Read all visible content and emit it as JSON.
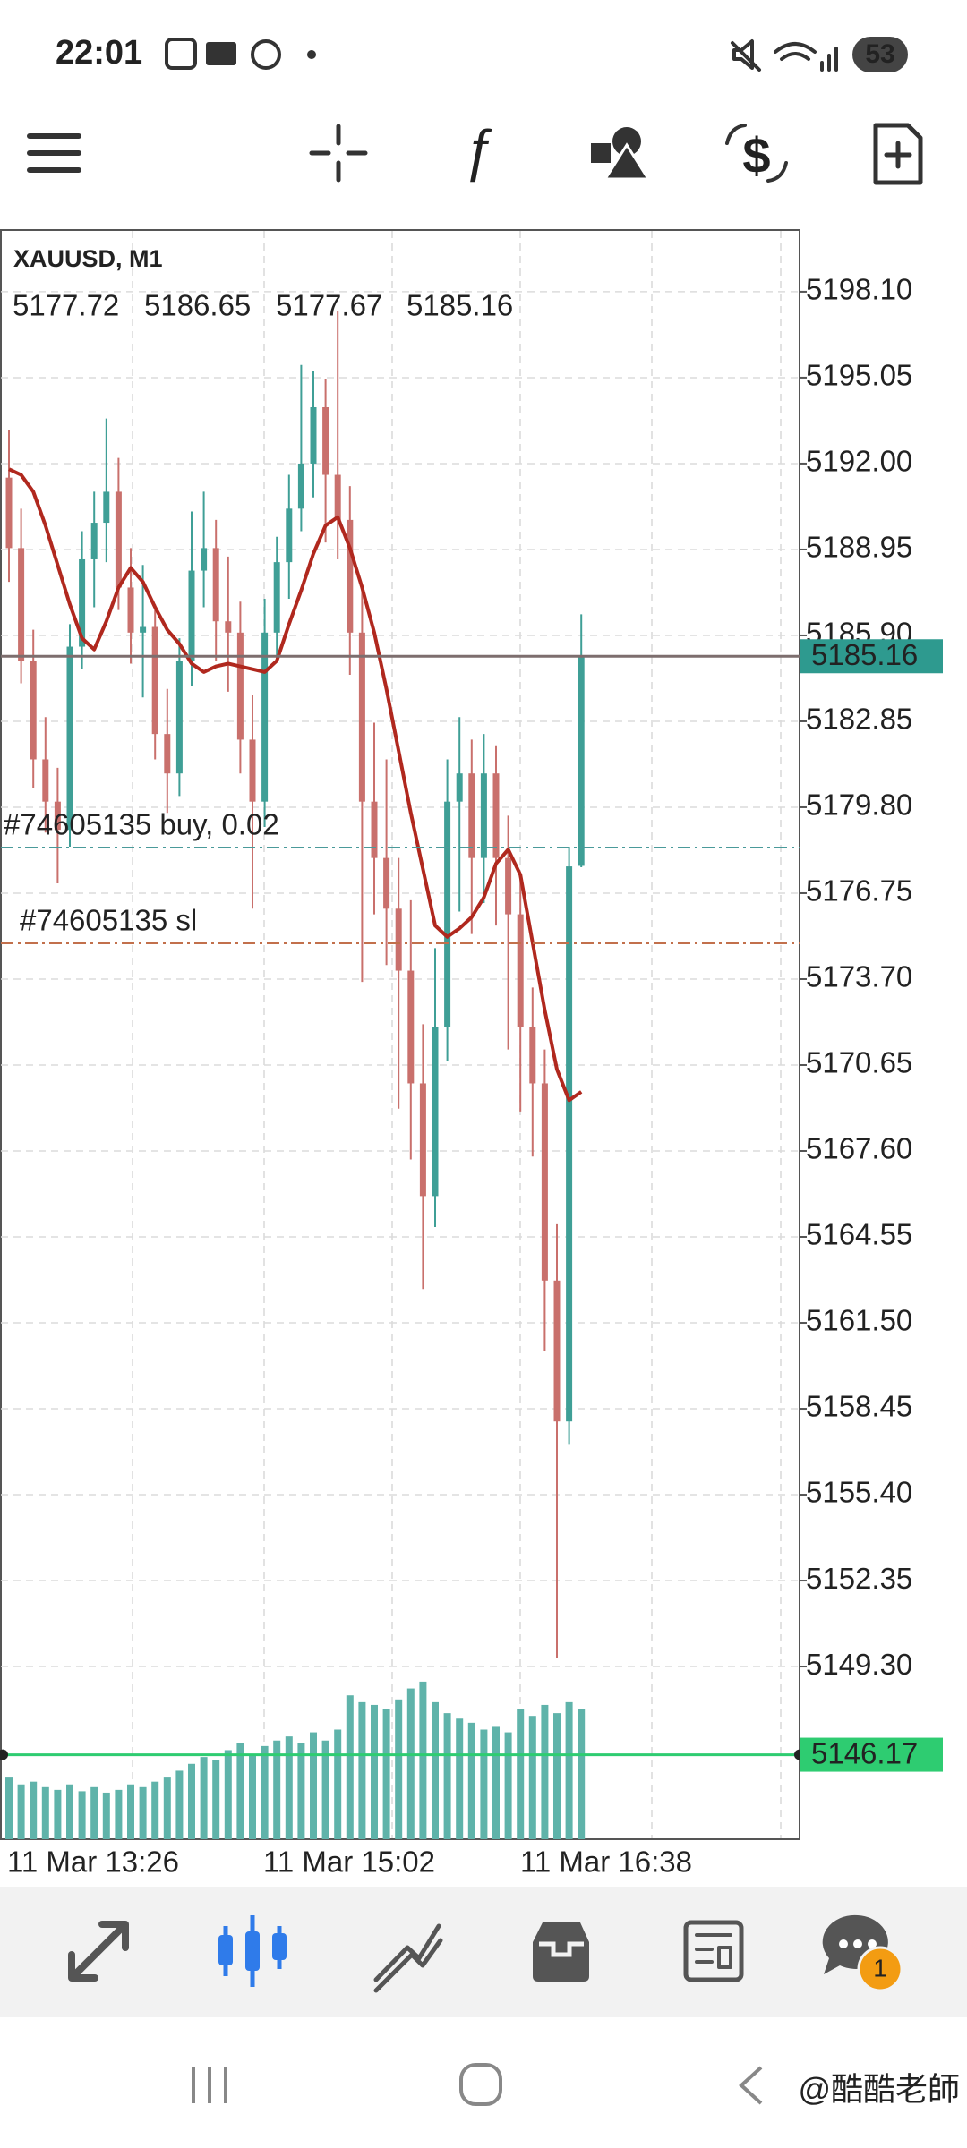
{
  "status_bar": {
    "time": "22:01",
    "battery": "53"
  },
  "chart_data": {
    "type": "candlestick",
    "symbol": "XAUUSD, M1",
    "candles": [
      [
        5191.5,
        5193.2,
        5187.8,
        5189.0
      ],
      [
        5189.0,
        5190.4,
        5184.2,
        5185.0
      ],
      [
        5185.0,
        5186.1,
        5180.5,
        5181.5
      ],
      [
        5181.5,
        5183.0,
        5178.9,
        5180.0
      ],
      [
        5180.0,
        5181.2,
        5177.1,
        5179.0
      ],
      [
        5179.0,
        5186.3,
        5178.4,
        5185.5
      ],
      [
        5185.5,
        5189.6,
        5184.7,
        5188.6
      ],
      [
        5188.6,
        5191.0,
        5186.9,
        5189.9
      ],
      [
        5189.9,
        5193.6,
        5188.5,
        5191.0
      ],
      [
        5191.0,
        5192.2,
        5186.8,
        5187.6
      ],
      [
        5187.6,
        5189.0,
        5184.9,
        5186.0
      ],
      [
        5186.0,
        5188.4,
        5183.7,
        5186.2
      ],
      [
        5186.2,
        5187.0,
        5181.5,
        5182.4
      ],
      [
        5182.4,
        5184.0,
        5179.6,
        5181.0
      ],
      [
        5181.0,
        5185.8,
        5180.2,
        5185.0
      ],
      [
        5185.0,
        5190.3,
        5184.1,
        5188.2
      ],
      [
        5188.2,
        5191.0,
        5186.9,
        5189.0
      ],
      [
        5189.0,
        5190.0,
        5185.0,
        5186.4
      ],
      [
        5186.4,
        5188.7,
        5183.9,
        5186.0
      ],
      [
        5186.0,
        5187.1,
        5181.0,
        5182.2
      ],
      [
        5182.2,
        5183.8,
        5176.2,
        5180.0
      ],
      [
        5180.0,
        5187.2,
        5179.1,
        5186.0
      ],
      [
        5186.0,
        5189.4,
        5185.0,
        5188.5
      ],
      [
        5188.5,
        5191.6,
        5187.2,
        5190.4
      ],
      [
        5190.4,
        5195.5,
        5189.6,
        5192.0
      ],
      [
        5192.0,
        5195.3,
        5190.8,
        5194.0
      ],
      [
        5194.0,
        5195.0,
        5189.2,
        5191.6
      ],
      [
        5191.6,
        5197.4,
        5188.6,
        5190.0
      ],
      [
        5190.0,
        5191.2,
        5184.5,
        5186.0
      ],
      [
        5186.0,
        5187.6,
        5173.6,
        5180.0
      ],
      [
        5180.0,
        5182.8,
        5176.0,
        5178.0
      ],
      [
        5178.0,
        5181.5,
        5174.2,
        5176.2
      ],
      [
        5176.2,
        5178.0,
        5169.1,
        5174.0
      ],
      [
        5174.0,
        5176.5,
        5167.3,
        5170.0
      ],
      [
        5170.0,
        5172.1,
        5162.7,
        5166.0
      ],
      [
        5166.0,
        5174.8,
        5164.9,
        5172.0
      ],
      [
        5172.0,
        5181.5,
        5170.8,
        5180.0
      ],
      [
        5180.0,
        5183.0,
        5176.1,
        5181.0
      ],
      [
        5181.0,
        5182.2,
        5175.3,
        5178.0
      ],
      [
        5178.0,
        5182.4,
        5176.4,
        5181.0
      ],
      [
        5181.0,
        5182.0,
        5175.6,
        5178.0
      ],
      [
        5178.0,
        5179.5,
        5171.2,
        5176.0
      ],
      [
        5176.0,
        5177.3,
        5169.0,
        5172.0
      ],
      [
        5172.0,
        5173.4,
        5167.4,
        5170.0
      ],
      [
        5170.0,
        5171.2,
        5160.5,
        5163.0
      ],
      [
        5163.0,
        5165.0,
        5149.6,
        5158.0
      ],
      [
        5158.0,
        5178.4,
        5157.2,
        5177.7
      ],
      [
        5177.72,
        5186.65,
        5177.67,
        5185.16
      ]
    ],
    "ma": [
      5191.8,
      5191.6,
      5191.0,
      5189.8,
      5188.4,
      5187.0,
      5185.8,
      5185.4,
      5186.4,
      5187.6,
      5188.3,
      5187.8,
      5186.9,
      5186.1,
      5185.6,
      5184.9,
      5184.6,
      5184.8,
      5184.9,
      5184.8,
      5184.7,
      5184.6,
      5185.0,
      5186.3,
      5187.5,
      5188.8,
      5189.8,
      5190.1,
      5189.0,
      5187.6,
      5186.0,
      5184.0,
      5181.8,
      5179.6,
      5177.6,
      5175.6,
      5175.2,
      5175.5,
      5175.9,
      5176.6,
      5177.8,
      5178.3,
      5177.4,
      5175.0,
      5172.6,
      5170.5,
      5169.4,
      5169.7
    ],
    "volumes": [
      45,
      40,
      42,
      38,
      36,
      40,
      35,
      38,
      34,
      36,
      40,
      38,
      42,
      45,
      50,
      55,
      60,
      58,
      65,
      70,
      62,
      68,
      72,
      75,
      70,
      78,
      72,
      80,
      105,
      100,
      98,
      95,
      102,
      110,
      115,
      100,
      92,
      88,
      85,
      80,
      82,
      78,
      95,
      90,
      98,
      92,
      100,
      95
    ],
    "vlim": [
      0,
      160
    ],
    "ylim": [
      5143.17,
      5200.29
    ],
    "yticks": [
      {
        "value": 5198.1,
        "label": "5198.10"
      },
      {
        "value": 5195.05,
        "label": "5195.05"
      },
      {
        "value": 5192,
        "label": "5192.00"
      },
      {
        "value": 5188.95,
        "label": "5188.95"
      },
      {
        "value": 5185.9,
        "label": "5185.90"
      },
      {
        "value": 5182.85,
        "label": "5182.85"
      },
      {
        "value": 5179.8,
        "label": "5179.80"
      },
      {
        "value": 5176.75,
        "label": "5176.75"
      },
      {
        "value": 5173.7,
        "label": "5173.70"
      },
      {
        "value": 5170.65,
        "label": "5170.65"
      },
      {
        "value": 5167.6,
        "label": "5167.60"
      },
      {
        "value": 5164.55,
        "label": "5164.55"
      },
      {
        "value": 5161.5,
        "label": "5161.50"
      },
      {
        "value": 5158.45,
        "label": "5158.45"
      },
      {
        "value": 5155.4,
        "label": "5155.40"
      },
      {
        "value": 5152.35,
        "label": "5152.35"
      },
      {
        "value": 5149.3,
        "label": "5149.30"
      }
    ],
    "x_labels": [
      "11 Mar 13:26",
      "11 Mar 15:02",
      "11 Mar 16:38"
    ],
    "grid": true,
    "bull_color": "#3f9f96",
    "bear_color": "#c9706c",
    "ma_color": "#b0281e",
    "volume_color": "#5fb3aa",
    "price_line_color": "#7d6e6e",
    "price_label_color": "#2e9a8f",
    "levels": [
      {
        "label": "#74605135 buy, 0.02",
        "value": 5178.37,
        "color": "#4a9a9a"
      },
      {
        "label": "#74605135 sl",
        "value": 5174.97,
        "color": "#c2704c"
      }
    ],
    "level_line": {
      "value": 5146.17,
      "label": "5146.17",
      "color": "#2ecc71"
    }
  },
  "nav": {
    "badge": 1
  },
  "watermark": "@酷酷老師"
}
